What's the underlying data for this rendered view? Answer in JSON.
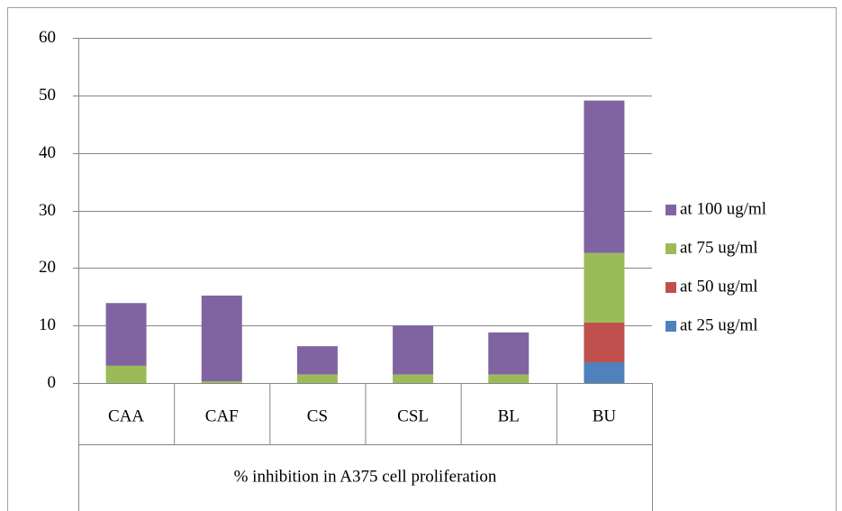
{
  "chart_data": {
    "type": "stacked_bar",
    "xlabel": "% inhibition in A375 cell proliferation",
    "categories": [
      "CAA",
      "CAF",
      "CS",
      "CSL",
      "BL",
      "BU"
    ],
    "series": [
      {
        "name": "at 25 ug/ml",
        "color": "#4f81bd",
        "values": [
          0,
          0,
          0,
          0,
          0,
          3.6
        ]
      },
      {
        "name": "at 50 ug/ml",
        "color": "#c0504d",
        "values": [
          0,
          0,
          0,
          0,
          0,
          6.9
        ]
      },
      {
        "name": "at 75 ug/ml",
        "color": "#9bbb59",
        "values": [
          3,
          0.3,
          1.5,
          1.5,
          1.5,
          12.1
        ]
      },
      {
        "name": "at 100 ug/ml",
        "color": "#8064a2",
        "values": [
          10.9,
          14.9,
          4.9,
          8.5,
          7.3,
          26.5
        ]
      }
    ],
    "ylim": [
      0,
      60
    ],
    "yticks": [
      0,
      10,
      20,
      30,
      40,
      50,
      60
    ],
    "grid": true,
    "legend": "right"
  }
}
